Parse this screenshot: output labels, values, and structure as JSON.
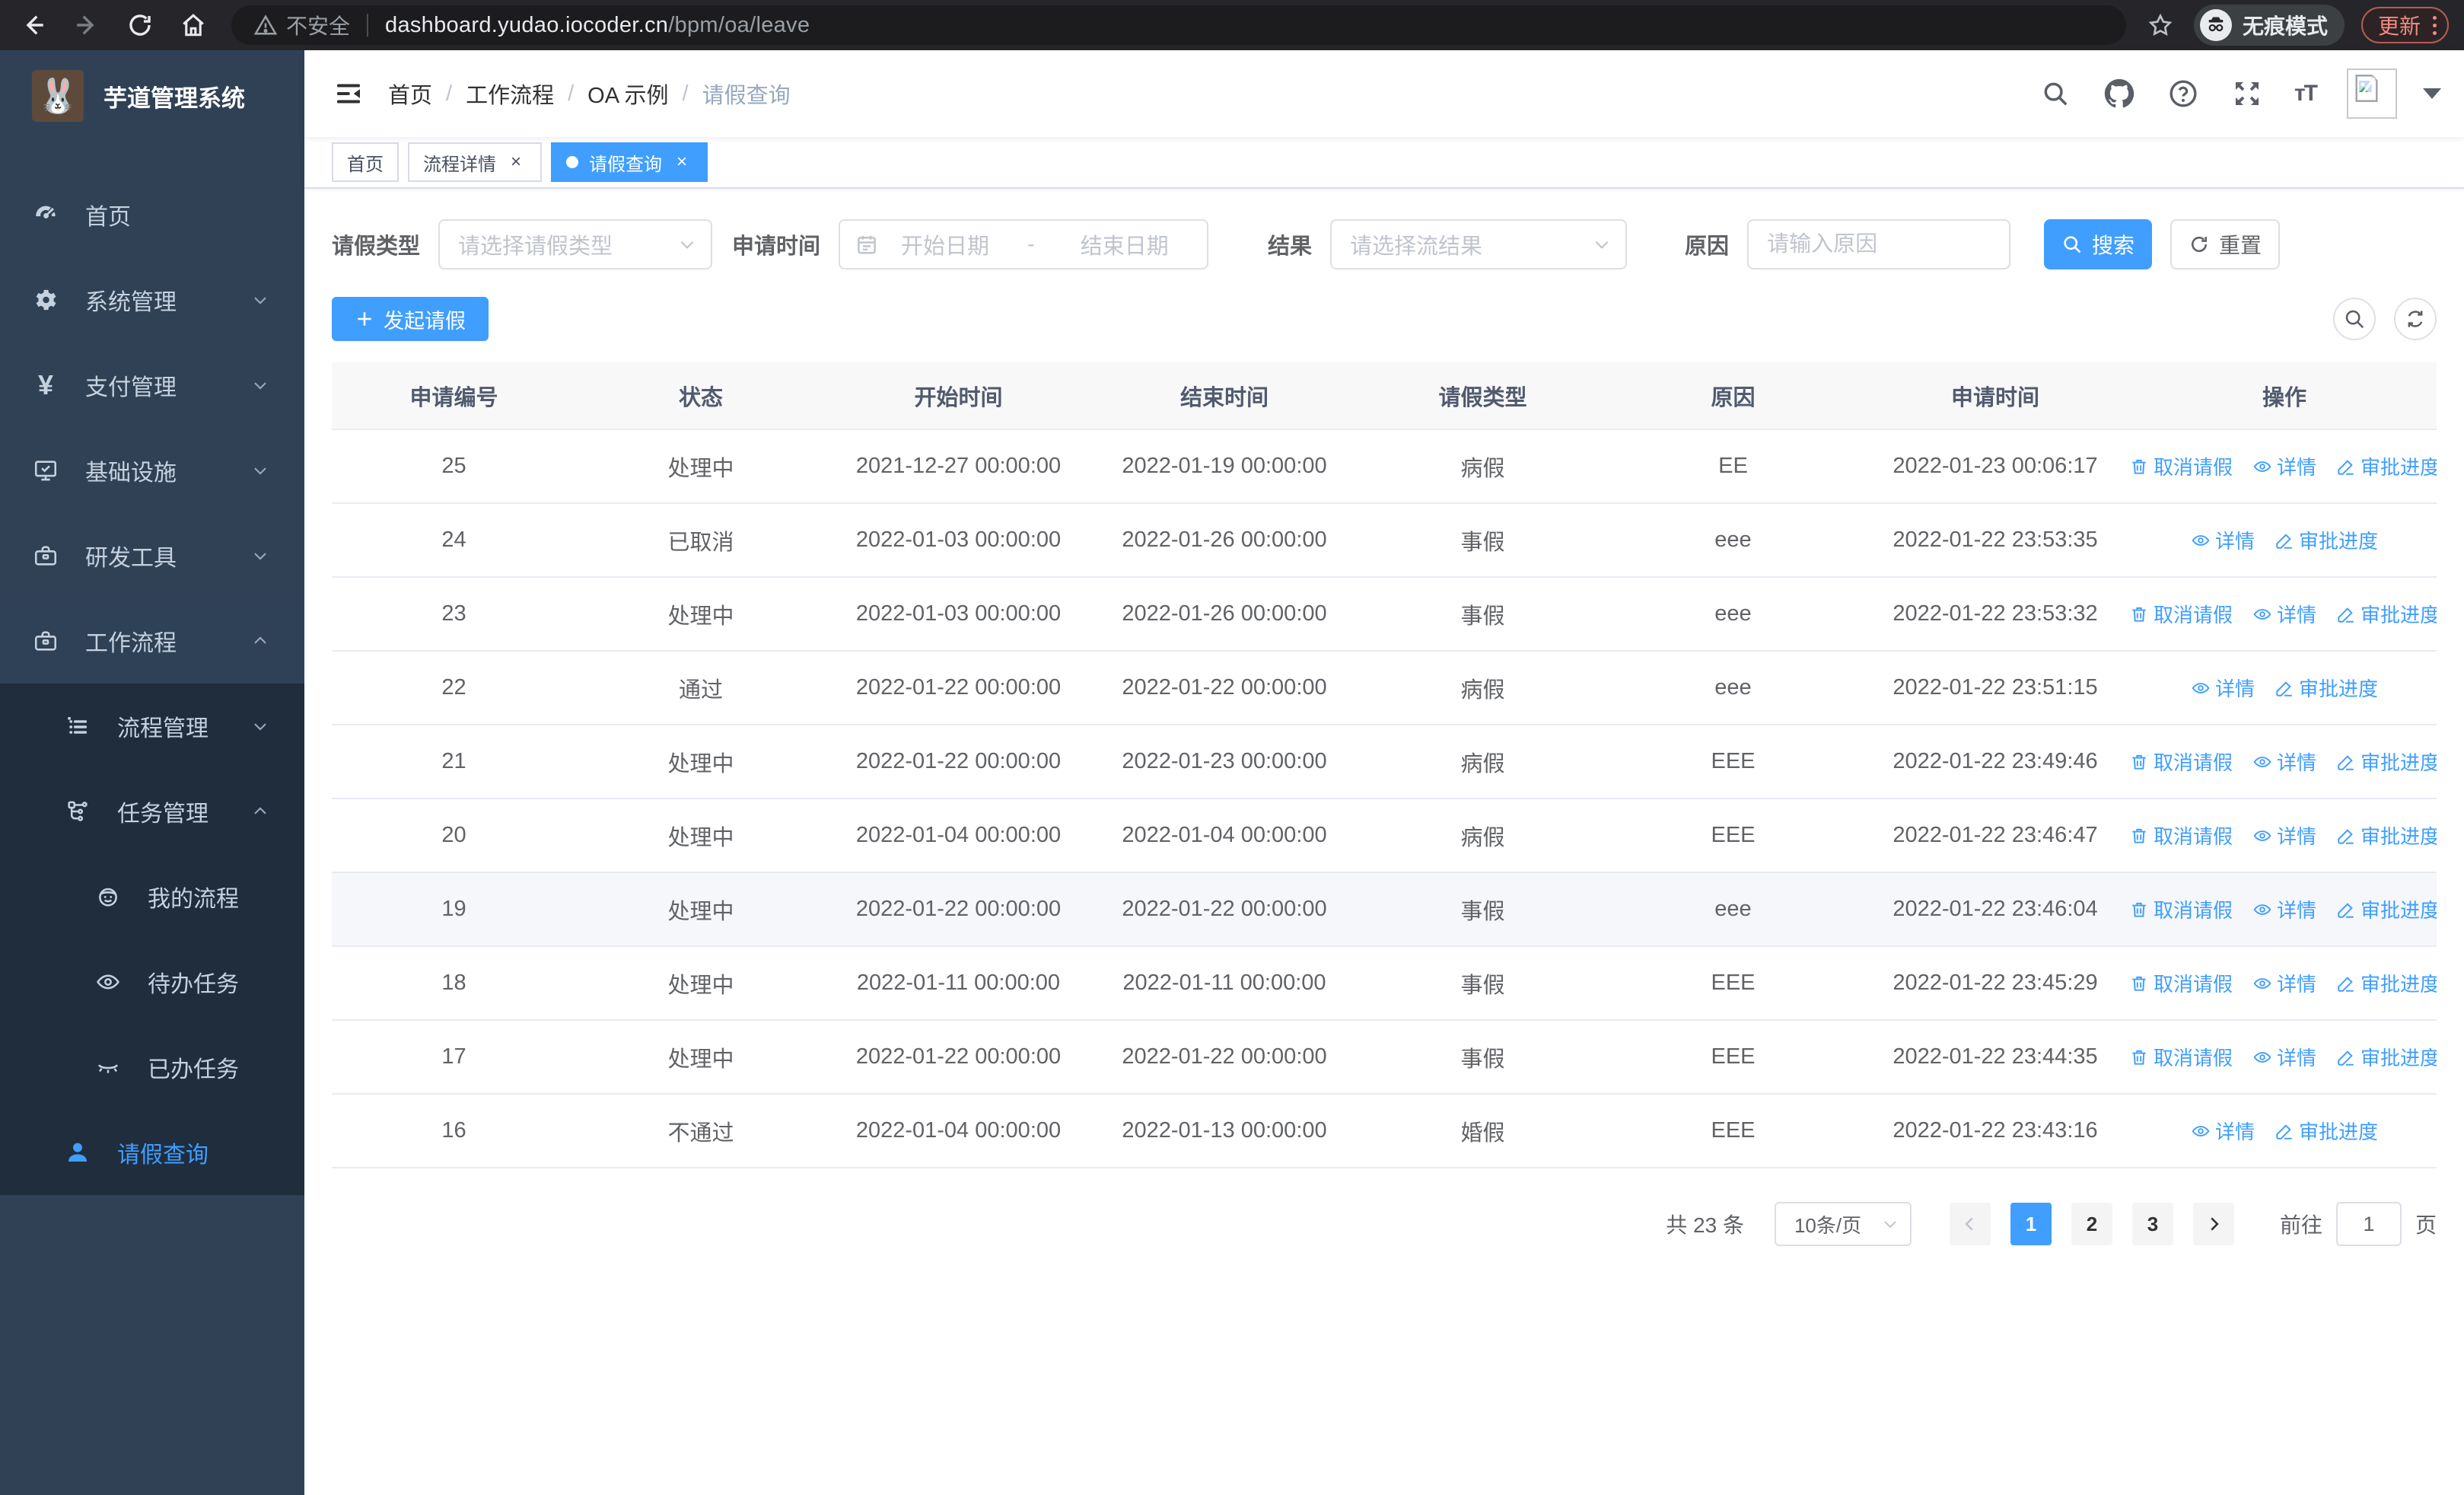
{
  "browser": {
    "security_label": "不安全",
    "url_host": "dashboard.yudao.iocoder.cn",
    "url_path": "/bpm/oa/leave",
    "incognito_label": "无痕模式",
    "update_label": "更新"
  },
  "sidebar": {
    "title": "芋道管理系统",
    "items": [
      {
        "label": "首页",
        "icon": "dashboard-icon",
        "level": 0,
        "arrow": null,
        "sub": false,
        "active": false,
        "open": false
      },
      {
        "label": "系统管理",
        "icon": "gear-icon",
        "level": 0,
        "arrow": "down",
        "sub": false,
        "active": false,
        "open": false
      },
      {
        "label": "支付管理",
        "icon": "yen-icon",
        "level": 0,
        "arrow": "down",
        "sub": false,
        "active": false,
        "open": false
      },
      {
        "label": "基础设施",
        "icon": "monitor-icon",
        "level": 0,
        "arrow": "down",
        "sub": false,
        "active": false,
        "open": false
      },
      {
        "label": "研发工具",
        "icon": "toolbox-icon",
        "level": 0,
        "arrow": "down",
        "sub": false,
        "active": false,
        "open": false
      },
      {
        "label": "工作流程",
        "icon": "briefcase-icon",
        "level": 0,
        "arrow": "up",
        "sub": false,
        "active": false,
        "open": true
      },
      {
        "label": "流程管理",
        "icon": "process-list-icon",
        "level": 1,
        "arrow": "down",
        "sub": true,
        "active": false,
        "open": false
      },
      {
        "label": "任务管理",
        "icon": "task-tree-icon",
        "level": 1,
        "arrow": "up",
        "sub": true,
        "active": false,
        "open": false
      },
      {
        "label": "我的流程",
        "icon": "my-process-icon",
        "level": 2,
        "arrow": null,
        "sub": true,
        "active": false,
        "open": false
      },
      {
        "label": "待办任务",
        "icon": "todo-eye-icon",
        "level": 2,
        "arrow": null,
        "sub": true,
        "active": false,
        "open": false
      },
      {
        "label": "已办任务",
        "icon": "done-eye-icon",
        "level": 2,
        "arrow": null,
        "sub": true,
        "active": false,
        "open": false
      },
      {
        "label": "请假查询",
        "icon": "user-icon",
        "level": 1,
        "arrow": null,
        "sub": true,
        "active": true,
        "open": false
      }
    ]
  },
  "breadcrumb": [
    "首页",
    "工作流程",
    "OA 示例",
    "请假查询"
  ],
  "tabs": [
    {
      "label": "首页",
      "closable": false,
      "active": false
    },
    {
      "label": "流程详情",
      "closable": true,
      "active": false
    },
    {
      "label": "请假查询",
      "closable": true,
      "active": true
    }
  ],
  "filters": {
    "leave_type_label": "请假类型",
    "leave_type_placeholder": "请选择请假类型",
    "apply_time_label": "申请时间",
    "start_date_placeholder": "开始日期",
    "range_separator": "-",
    "end_date_placeholder": "结束日期",
    "result_label": "结果",
    "result_placeholder": "请选择流结果",
    "reason_label": "原因",
    "reason_placeholder": "请输入原因",
    "search_label": "搜索",
    "reset_label": "重置"
  },
  "toolbar": {
    "create_label": "发起请假"
  },
  "table": {
    "columns": [
      "申请编号",
      "状态",
      "开始时间",
      "结束时间",
      "请假类型",
      "原因",
      "申请时间",
      "操作"
    ],
    "action_labels": {
      "cancel": "取消请假",
      "detail": "详情",
      "progress": "审批进度"
    },
    "rows": [
      {
        "id": "25",
        "status": "处理中",
        "start": "2021-12-27 00:00:00",
        "end": "2022-01-19 00:00:00",
        "type": "病假",
        "reason": "EE",
        "apply_time": "2022-01-23 00:06:17",
        "cancellable": true,
        "highlighted": false
      },
      {
        "id": "24",
        "status": "已取消",
        "start": "2022-01-03 00:00:00",
        "end": "2022-01-26 00:00:00",
        "type": "事假",
        "reason": "eee",
        "apply_time": "2022-01-22 23:53:35",
        "cancellable": false,
        "highlighted": false
      },
      {
        "id": "23",
        "status": "处理中",
        "start": "2022-01-03 00:00:00",
        "end": "2022-01-26 00:00:00",
        "type": "事假",
        "reason": "eee",
        "apply_time": "2022-01-22 23:53:32",
        "cancellable": true,
        "highlighted": false
      },
      {
        "id": "22",
        "status": "通过",
        "start": "2022-01-22 00:00:00",
        "end": "2022-01-22 00:00:00",
        "type": "病假",
        "reason": "eee",
        "apply_time": "2022-01-22 23:51:15",
        "cancellable": false,
        "highlighted": false
      },
      {
        "id": "21",
        "status": "处理中",
        "start": "2022-01-22 00:00:00",
        "end": "2022-01-23 00:00:00",
        "type": "病假",
        "reason": "EEE",
        "apply_time": "2022-01-22 23:49:46",
        "cancellable": true,
        "highlighted": false
      },
      {
        "id": "20",
        "status": "处理中",
        "start": "2022-01-04 00:00:00",
        "end": "2022-01-04 00:00:00",
        "type": "病假",
        "reason": "EEE",
        "apply_time": "2022-01-22 23:46:47",
        "cancellable": true,
        "highlighted": false
      },
      {
        "id": "19",
        "status": "处理中",
        "start": "2022-01-22 00:00:00",
        "end": "2022-01-22 00:00:00",
        "type": "事假",
        "reason": "eee",
        "apply_time": "2022-01-22 23:46:04",
        "cancellable": true,
        "highlighted": true
      },
      {
        "id": "18",
        "status": "处理中",
        "start": "2022-01-11 00:00:00",
        "end": "2022-01-11 00:00:00",
        "type": "事假",
        "reason": "EEE",
        "apply_time": "2022-01-22 23:45:29",
        "cancellable": true,
        "highlighted": false
      },
      {
        "id": "17",
        "status": "处理中",
        "start": "2022-01-22 00:00:00",
        "end": "2022-01-22 00:00:00",
        "type": "事假",
        "reason": "EEE",
        "apply_time": "2022-01-22 23:44:35",
        "cancellable": true,
        "highlighted": false
      },
      {
        "id": "16",
        "status": "不通过",
        "start": "2022-01-04 00:00:00",
        "end": "2022-01-13 00:00:00",
        "type": "婚假",
        "reason": "EEE",
        "apply_time": "2022-01-22 23:43:16",
        "cancellable": false,
        "highlighted": false
      }
    ]
  },
  "pagination": {
    "total_label": "共 23 条",
    "page_size": "10条/页",
    "pages": [
      "1",
      "2",
      "3"
    ],
    "active_page": "1",
    "goto_label": "前往",
    "goto_value": "1",
    "page_suffix": "页"
  },
  "colors": {
    "primary": "#409eff",
    "sidebar_bg": "#304156",
    "submenu_bg": "#1f2d3d",
    "update_red": "#f28b82"
  }
}
